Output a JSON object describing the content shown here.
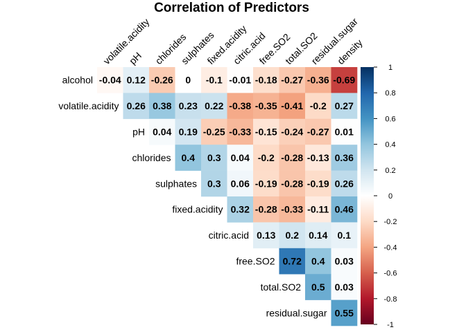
{
  "chart_data": {
    "type": "heatmap",
    "title": "Correlation of Predictors",
    "row_labels": [
      "alcohol",
      "volatile.acidity",
      "pH",
      "chlorides",
      "sulphates",
      "fixed.acidity",
      "citric.acid",
      "free.SO2",
      "total.SO2",
      "residual.sugar"
    ],
    "col_labels": [
      "volatile.acidity",
      "pH",
      "chlorides",
      "sulphates",
      "fixed.acidity",
      "citric.acid",
      "free.SO2",
      "total.SO2",
      "residual.sugar",
      "density"
    ],
    "values": [
      [
        "-0.04",
        "0.12",
        "-0.26",
        "0",
        "-0.1",
        "-0.01",
        "-0.18",
        "-0.27",
        "-0.36",
        "-0.69"
      ],
      [
        null,
        "0.26",
        "0.38",
        "0.23",
        "0.22",
        "-0.38",
        "-0.35",
        "-0.41",
        "-0.2",
        "0.27"
      ],
      [
        null,
        null,
        "0.04",
        "0.19",
        "-0.25",
        "-0.33",
        "-0.15",
        "-0.24",
        "-0.27",
        "0.01"
      ],
      [
        null,
        null,
        null,
        "0.4",
        "0.3",
        "0.04",
        "-0.2",
        "-0.28",
        "-0.13",
        "0.36"
      ],
      [
        null,
        null,
        null,
        null,
        "0.3",
        "0.06",
        "-0.19",
        "-0.28",
        "-0.19",
        "0.26"
      ],
      [
        null,
        null,
        null,
        null,
        null,
        "0.32",
        "-0.28",
        "-0.33",
        "-0.11",
        "0.46"
      ],
      [
        null,
        null,
        null,
        null,
        null,
        null,
        "0.13",
        "0.2",
        "0.14",
        "0.1"
      ],
      [
        null,
        null,
        null,
        null,
        null,
        null,
        null,
        "0.72",
        "0.4",
        "0.03"
      ],
      [
        null,
        null,
        null,
        null,
        null,
        null,
        null,
        null,
        "0.5",
        "0.03"
      ],
      [
        null,
        null,
        null,
        null,
        null,
        null,
        null,
        null,
        null,
        "0.55"
      ]
    ],
    "colorbar": {
      "ticks": [
        "1",
        "0.8",
        "0.6",
        "0.4",
        "0.2",
        "0",
        "-0.2",
        "-0.4",
        "-0.6",
        "-0.8",
        "-1"
      ],
      "range": [
        -1,
        1
      ],
      "colors": [
        "#67001F",
        "#B2182B",
        "#D6604D",
        "#F4A582",
        "#FDDBC7",
        "#FFFFFF",
        "#D1E5F0",
        "#92C5DE",
        "#4393C3",
        "#2166AC",
        "#053061"
      ]
    },
    "grid": false,
    "legend_position": "right"
  }
}
